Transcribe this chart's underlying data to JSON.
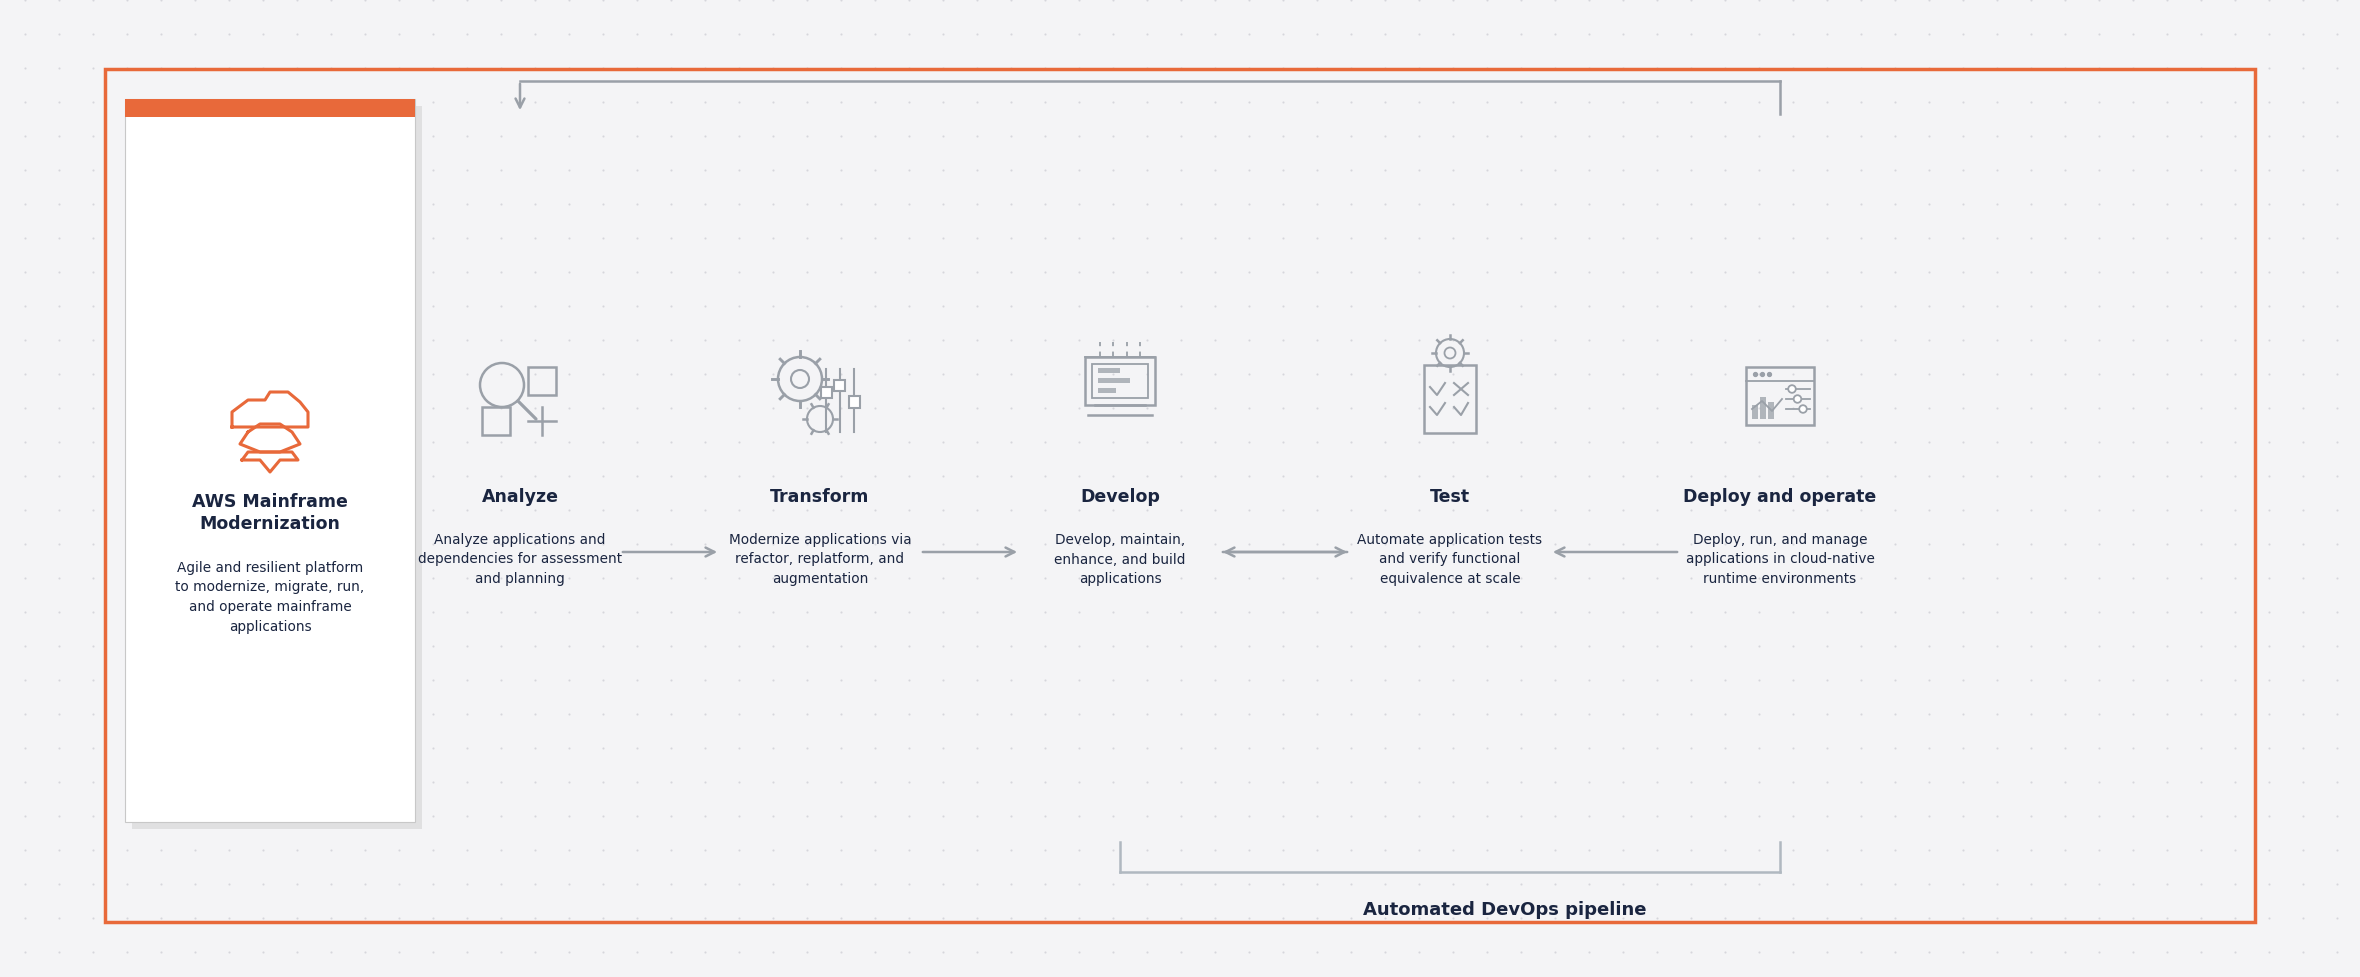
{
  "bg_color": "#f4f4f6",
  "bg_dot_color": "#c8c8d0",
  "outer_border_color": "#e8693a",
  "outer_border_lw": 2.5,
  "card_bg": "#ffffff",
  "card_border_color": "#c8c8c8",
  "orange_bar_color": "#e8693a",
  "arrow_color": "#9aa0a8",
  "arrow_lw": 1.8,
  "dark_text": "#1a2540",
  "body_text": "#1a2540",
  "icon_color": "#9aa0a8",
  "pipeline_line_color": "#b0b8c0",
  "phases": [
    {
      "id": "aws",
      "title": "AWS Mainframe\nModernization",
      "desc": "Agile and resilient platform\nto modernize, migrate, run,\nand operate mainframe\napplications"
    },
    {
      "id": "analyze",
      "title": "Analyze",
      "desc": "Analyze applications and\ndependencies for assessment\nand planning"
    },
    {
      "id": "transform",
      "title": "Transform",
      "desc": "Modernize applications via\nrefactor, replatform, and\naugmentation"
    },
    {
      "id": "develop",
      "title": "Develop",
      "desc": "Develop, maintain,\nenhance, and build\napplications"
    },
    {
      "id": "test",
      "title": "Test",
      "desc": "Automate application tests\nand verify functional\nequivalence at scale"
    },
    {
      "id": "deploy",
      "title": "Deploy and operate",
      "desc": "Deploy, run, and manage\napplications in cloud-native\nruntime environments"
    }
  ],
  "devops_label": "Automated DevOps pipeline",
  "fig_w": 23.6,
  "fig_h": 9.78
}
